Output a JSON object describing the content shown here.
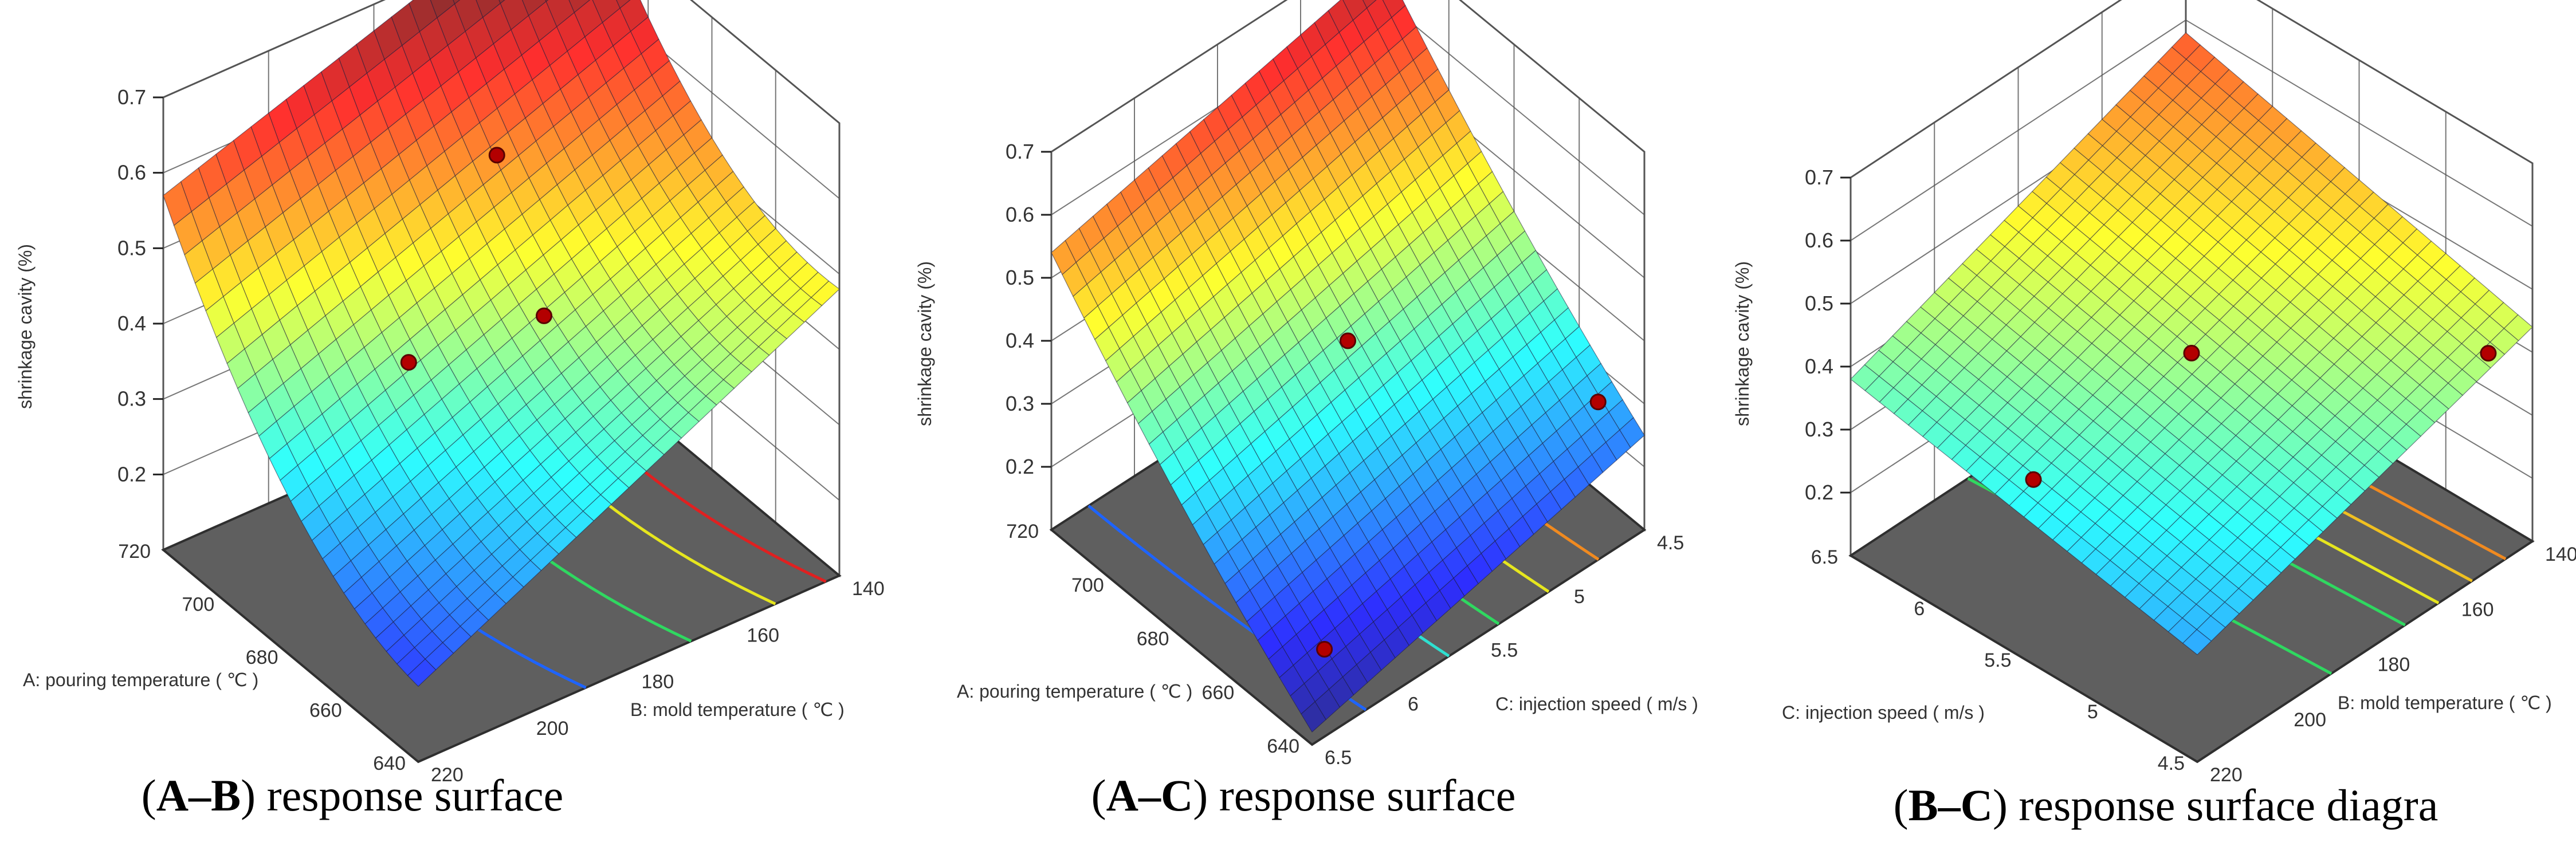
{
  "figure": {
    "panels": [
      {
        "caption_key": "A–B",
        "caption_text": " response surface"
      },
      {
        "caption_key": "A–C",
        "caption_text": " response surface"
      },
      {
        "caption_key": "B–C",
        "caption_text": " response surface diagra"
      }
    ]
  },
  "colors": {
    "floor": "#5f5f5f",
    "floor_edge": "#2f2f2f",
    "grid": "#555555",
    "point": "#b30000",
    "mesh": "#1b1b3a"
  },
  "chart_data": [
    {
      "type": "surface3d",
      "title": "(A–B) response surface",
      "zlabel": "shrinkage cavity (%)",
      "zlim": [
        0.1,
        0.7
      ],
      "zticks": [
        "0.2",
        "0.3",
        "0.4",
        "0.5",
        "0.6",
        "0.7"
      ],
      "left_axis": {
        "label": "A: pouring temperature ( ℃ )",
        "range": [
          720,
          640
        ],
        "ticks": [
          "720",
          "700",
          "680",
          "660",
          "640"
        ]
      },
      "right_axis": {
        "label": "B: mold temperature ( ℃ )",
        "range": [
          220,
          140
        ],
        "ticks": [
          "220",
          "200",
          "180",
          "160",
          "140"
        ]
      },
      "surface_corners": {
        "near_bottom": 0.12,
        "left": 0.49,
        "right": 0.4,
        "back_top": 0.68
      },
      "curvature": 0.08,
      "design_points": [
        {
          "u": 0.25,
          "v": 0.45,
          "z": 0.51
        },
        {
          "u": 0.6,
          "v": 0.55,
          "z": 0.6
        },
        {
          "u": 0.5,
          "v": 0.28,
          "z": 0.42
        }
      ],
      "floor_contours": [
        {
          "t": 0.92,
          "color": "#e02020"
        },
        {
          "t": 0.8,
          "color": "#e6e61e"
        },
        {
          "t": 0.6,
          "color": "#2fd860"
        },
        {
          "t": 0.35,
          "color": "#1e64ff"
        }
      ]
    },
    {
      "type": "surface3d",
      "title": "(A–C) response surface",
      "zlabel": "shrinkage cavity (%)",
      "zlim": [
        0.1,
        0.7
      ],
      "zticks": [
        "0.2",
        "0.3",
        "0.4",
        "0.5",
        "0.6",
        "0.7"
      ],
      "left_axis": {
        "label": "A: pouring temperature ( ℃ )",
        "range": [
          720,
          640
        ],
        "ticks": [
          "720",
          "700",
          "680",
          "660",
          "640"
        ]
      },
      "right_axis": {
        "label": "C: injection speed ( m/s )",
        "range": [
          6.5,
          4.5
        ],
        "ticks": [
          "6.5",
          "6",
          "5.5",
          "5",
          "4.5"
        ]
      },
      "surface_corners": {
        "near_bottom": 0.1,
        "left": 0.52,
        "right": 0.23,
        "back_top": 0.64
      },
      "curvature": 0.02,
      "design_points": [
        {
          "u": 0.5,
          "v": 0.5,
          "z": 0.4
        },
        {
          "u": 0.05,
          "v": 0.9,
          "z": 0.32
        },
        {
          "u": 0.08,
          "v": 0.1,
          "z": 0.19
        }
      ],
      "floor_contours": [
        {
          "t": 0.85,
          "color": "#f08a20"
        },
        {
          "t": 0.7,
          "color": "#e6e61e"
        },
        {
          "t": 0.55,
          "color": "#2fd860"
        },
        {
          "t": 0.4,
          "color": "#2ee0d0"
        },
        {
          "t": 0.15,
          "color": "#1e64ff"
        }
      ]
    },
    {
      "type": "surface3d",
      "title": "(B–C) response surface diagra",
      "zlabel": "shrinkage cavity (%)",
      "zlim": [
        0.1,
        0.7
      ],
      "zticks": [
        "0.2",
        "0.3",
        "0.4",
        "0.5",
        "0.6",
        "0.7"
      ],
      "left_axis": {
        "label": "C: injection speed ( m/s )",
        "range": [
          6.5,
          4.5
        ],
        "ticks": [
          "6.5",
          "6",
          "5.5",
          "5",
          "4.5"
        ]
      },
      "right_axis": {
        "label": "B: mold temperature ( ℃ )",
        "range": [
          220,
          140
        ],
        "ticks": [
          "220",
          "200",
          "180",
          "160",
          "140"
        ]
      },
      "surface_corners": {
        "near_bottom": 0.27,
        "left": 0.38,
        "right": 0.44,
        "back_top": 0.58
      },
      "curvature": 0.0,
      "design_points": [
        {
          "u": 0.5,
          "v": 0.5,
          "z": 0.41
        },
        {
          "u": 0.05,
          "v": 0.92,
          "z": 0.41
        },
        {
          "u": 0.55,
          "v": 0.08,
          "z": 0.34
        }
      ],
      "floor_contours": [
        {
          "t": 0.4,
          "color": "#2fd860"
        },
        {
          "t": 0.62,
          "color": "#2fd860"
        },
        {
          "t": 0.72,
          "color": "#e6e61e"
        },
        {
          "t": 0.82,
          "color": "#f0c020"
        },
        {
          "t": 0.92,
          "color": "#f08a20"
        }
      ]
    }
  ]
}
